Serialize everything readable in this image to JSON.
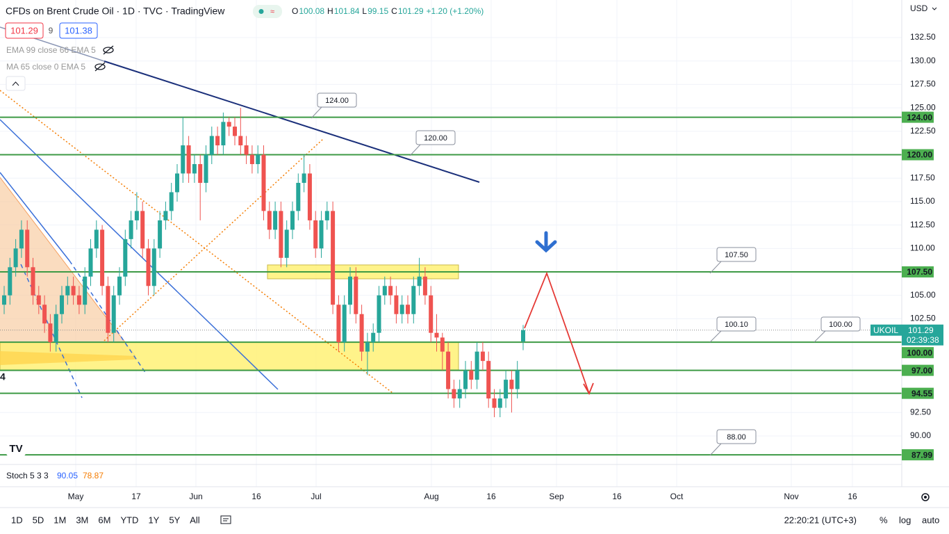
{
  "header": {
    "title": "CFDs on Brent Crude Oil · 1D · TVC · TradingView",
    "ohlc": [
      {
        "key": "O",
        "value": "100.08"
      },
      {
        "key": "H",
        "value": "101.84"
      },
      {
        "key": "L",
        "value": "99.15"
      },
      {
        "key": "C",
        "value": "101.29"
      }
    ],
    "change": "+1.20 (+1.20%)",
    "bid": "101.29",
    "spread": "9",
    "ask": "101.38"
  },
  "indicators": [
    "EMA 99 close 66 EMA 5",
    "MA 65 close 0 EMA 5"
  ],
  "stoch": {
    "name": "Stoch 5 3 3",
    "k": "90.05",
    "d": "78.87"
  },
  "side_mark": "4",
  "price_axis": {
    "currency": "USD",
    "ticks": [
      {
        "value": 132.5,
        "label": "132.50"
      },
      {
        "value": 130,
        "label": "130.00"
      },
      {
        "value": 127.5,
        "label": "127.50"
      },
      {
        "value": 125,
        "label": "125.00"
      },
      {
        "value": 122.5,
        "label": "122.50"
      },
      {
        "value": 117.5,
        "label": "117.50"
      },
      {
        "value": 115,
        "label": "115.00"
      },
      {
        "value": 112.5,
        "label": "112.50"
      },
      {
        "value": 110,
        "label": "110.00"
      },
      {
        "value": 105,
        "label": "105.00"
      },
      {
        "value": 102.5,
        "label": "102.50"
      },
      {
        "value": 92.5,
        "label": "92.50"
      },
      {
        "value": 90,
        "label": "90.00"
      }
    ]
  },
  "time_axis": {
    "labels": [
      "May",
      "17",
      "Jun",
      "16",
      "Jul",
      "Aug",
      "16",
      "Sep",
      "16",
      "Oct",
      "Nov",
      "16"
    ]
  },
  "levels": [
    {
      "value": 124,
      "label": "124.00"
    },
    {
      "value": 120,
      "label": "120.00"
    },
    {
      "value": 107.5,
      "label": "107.50"
    },
    {
      "value": 100,
      "label": "100.00"
    },
    {
      "value": 97,
      "label": "97.00"
    },
    {
      "value": 94.55,
      "label": "94.55"
    },
    {
      "value": 87.99,
      "label": "87.99"
    }
  ],
  "annotations": [
    "124.00",
    "120.00",
    "107.50",
    "100.10",
    "100.00",
    "88.00"
  ],
  "last_price": {
    "symbol": "UKOIL",
    "value": 101.29,
    "countdown": "02:39:38"
  },
  "candles": [
    [
      104,
      106,
      103,
      105
    ],
    [
      105,
      109,
      104,
      108
    ],
    [
      108,
      111,
      107,
      110
    ],
    [
      110,
      113,
      109,
      112
    ],
    [
      112,
      113,
      107,
      108
    ],
    [
      108,
      109,
      104,
      105
    ],
    [
      105,
      106,
      103,
      104
    ],
    [
      104,
      105,
      101,
      102
    ],
    [
      102,
      103,
      99,
      100
    ],
    [
      100,
      104,
      99,
      103
    ],
    [
      103,
      106,
      102,
      105
    ],
    [
      105,
      107,
      104,
      106
    ],
    [
      106,
      107,
      104,
      105
    ],
    [
      105,
      106,
      103,
      104
    ],
    [
      104,
      108,
      103,
      107
    ],
    [
      107,
      111,
      106,
      110
    ],
    [
      110,
      113,
      109,
      112
    ],
    [
      112,
      112.5,
      105,
      106
    ],
    [
      106,
      107,
      100,
      101
    ],
    [
      101,
      106,
      100,
      105
    ],
    [
      105,
      108,
      104,
      107
    ],
    [
      107,
      112,
      106,
      111
    ],
    [
      111,
      114,
      110,
      113
    ],
    [
      113,
      116,
      112,
      114
    ],
    [
      114,
      115,
      109,
      110
    ],
    [
      110,
      111,
      105,
      106
    ],
    [
      106,
      111,
      105,
      110
    ],
    [
      110,
      114,
      109,
      113
    ],
    [
      113,
      115,
      112,
      114
    ],
    [
      114,
      117,
      113,
      116
    ],
    [
      116,
      119,
      115,
      118
    ],
    [
      118,
      124,
      117,
      121
    ],
    [
      121,
      122,
      117,
      118
    ],
    [
      118,
      120,
      117,
      119
    ],
    [
      119,
      120,
      113,
      117
    ],
    [
      117,
      121,
      116,
      120
    ],
    [
      120,
      123,
      119,
      122
    ],
    [
      122,
      123,
      120,
      121
    ],
    [
      121,
      124.5,
      120,
      123.5
    ],
    [
      123.5,
      124,
      122,
      123
    ],
    [
      123,
      124,
      121,
      122
    ],
    [
      122,
      125,
      120,
      121
    ],
    [
      121,
      122,
      119,
      120
    ],
    [
      120,
      121,
      118,
      119
    ],
    [
      119,
      121,
      118,
      120
    ],
    [
      120,
      121,
      113,
      114
    ],
    [
      114,
      115,
      111,
      112
    ],
    [
      112,
      115,
      111,
      114
    ],
    [
      114,
      115,
      108,
      109
    ],
    [
      109,
      113,
      108,
      112
    ],
    [
      112,
      115,
      111,
      114
    ],
    [
      114,
      118,
      113,
      117
    ],
    [
      117,
      120,
      116,
      118
    ],
    [
      118,
      119,
      112,
      113
    ],
    [
      113,
      114,
      109,
      110
    ],
    [
      110,
      114,
      109,
      113
    ],
    [
      113,
      115,
      112,
      114
    ],
    [
      114,
      115,
      103,
      104
    ],
    [
      104,
      105,
      99,
      100
    ],
    [
      100,
      105,
      99,
      104
    ],
    [
      104,
      108,
      103,
      107
    ],
    [
      107,
      108,
      102,
      103
    ],
    [
      103,
      104,
      98,
      99
    ],
    [
      99,
      101,
      96.5,
      100
    ],
    [
      100,
      102,
      99,
      101
    ],
    [
      101,
      106,
      100,
      105
    ],
    [
      105,
      107,
      104,
      106
    ],
    [
      106,
      107,
      104,
      105
    ],
    [
      105,
      106,
      102,
      103
    ],
    [
      103,
      105,
      102,
      104
    ],
    [
      104,
      105,
      102,
      103
    ],
    [
      103,
      107,
      102,
      106
    ],
    [
      106,
      109,
      105,
      107
    ],
    [
      107,
      108,
      104,
      105
    ],
    [
      105,
      106,
      100,
      101
    ],
    [
      101,
      103,
      99,
      100.5
    ],
    [
      100.5,
      101,
      97,
      99
    ],
    [
      99,
      100,
      94,
      95
    ],
    [
      95,
      96,
      93,
      94
    ],
    [
      94,
      96,
      93,
      95
    ],
    [
      95,
      98,
      94,
      97
    ],
    [
      97,
      98,
      95,
      96
    ],
    [
      96,
      100,
      95,
      99
    ],
    [
      99,
      100,
      97,
      98
    ],
    [
      98,
      99,
      93,
      94
    ],
    [
      94,
      95,
      92,
      93
    ],
    [
      93,
      95,
      92,
      94
    ],
    [
      94,
      97,
      93,
      96
    ],
    [
      96,
      97,
      92.5,
      95
    ],
    [
      95,
      98,
      94,
      97
    ],
    [
      100.08,
      101.84,
      99.15,
      101.29
    ]
  ],
  "toolbar": {
    "intervals": [
      "1D",
      "5D",
      "1M",
      "3M",
      "6M",
      "YTD",
      "1Y",
      "5Y",
      "All"
    ],
    "clock": "22:20:21 (UTC+3)",
    "options": [
      "%",
      "log",
      "auto"
    ]
  }
}
